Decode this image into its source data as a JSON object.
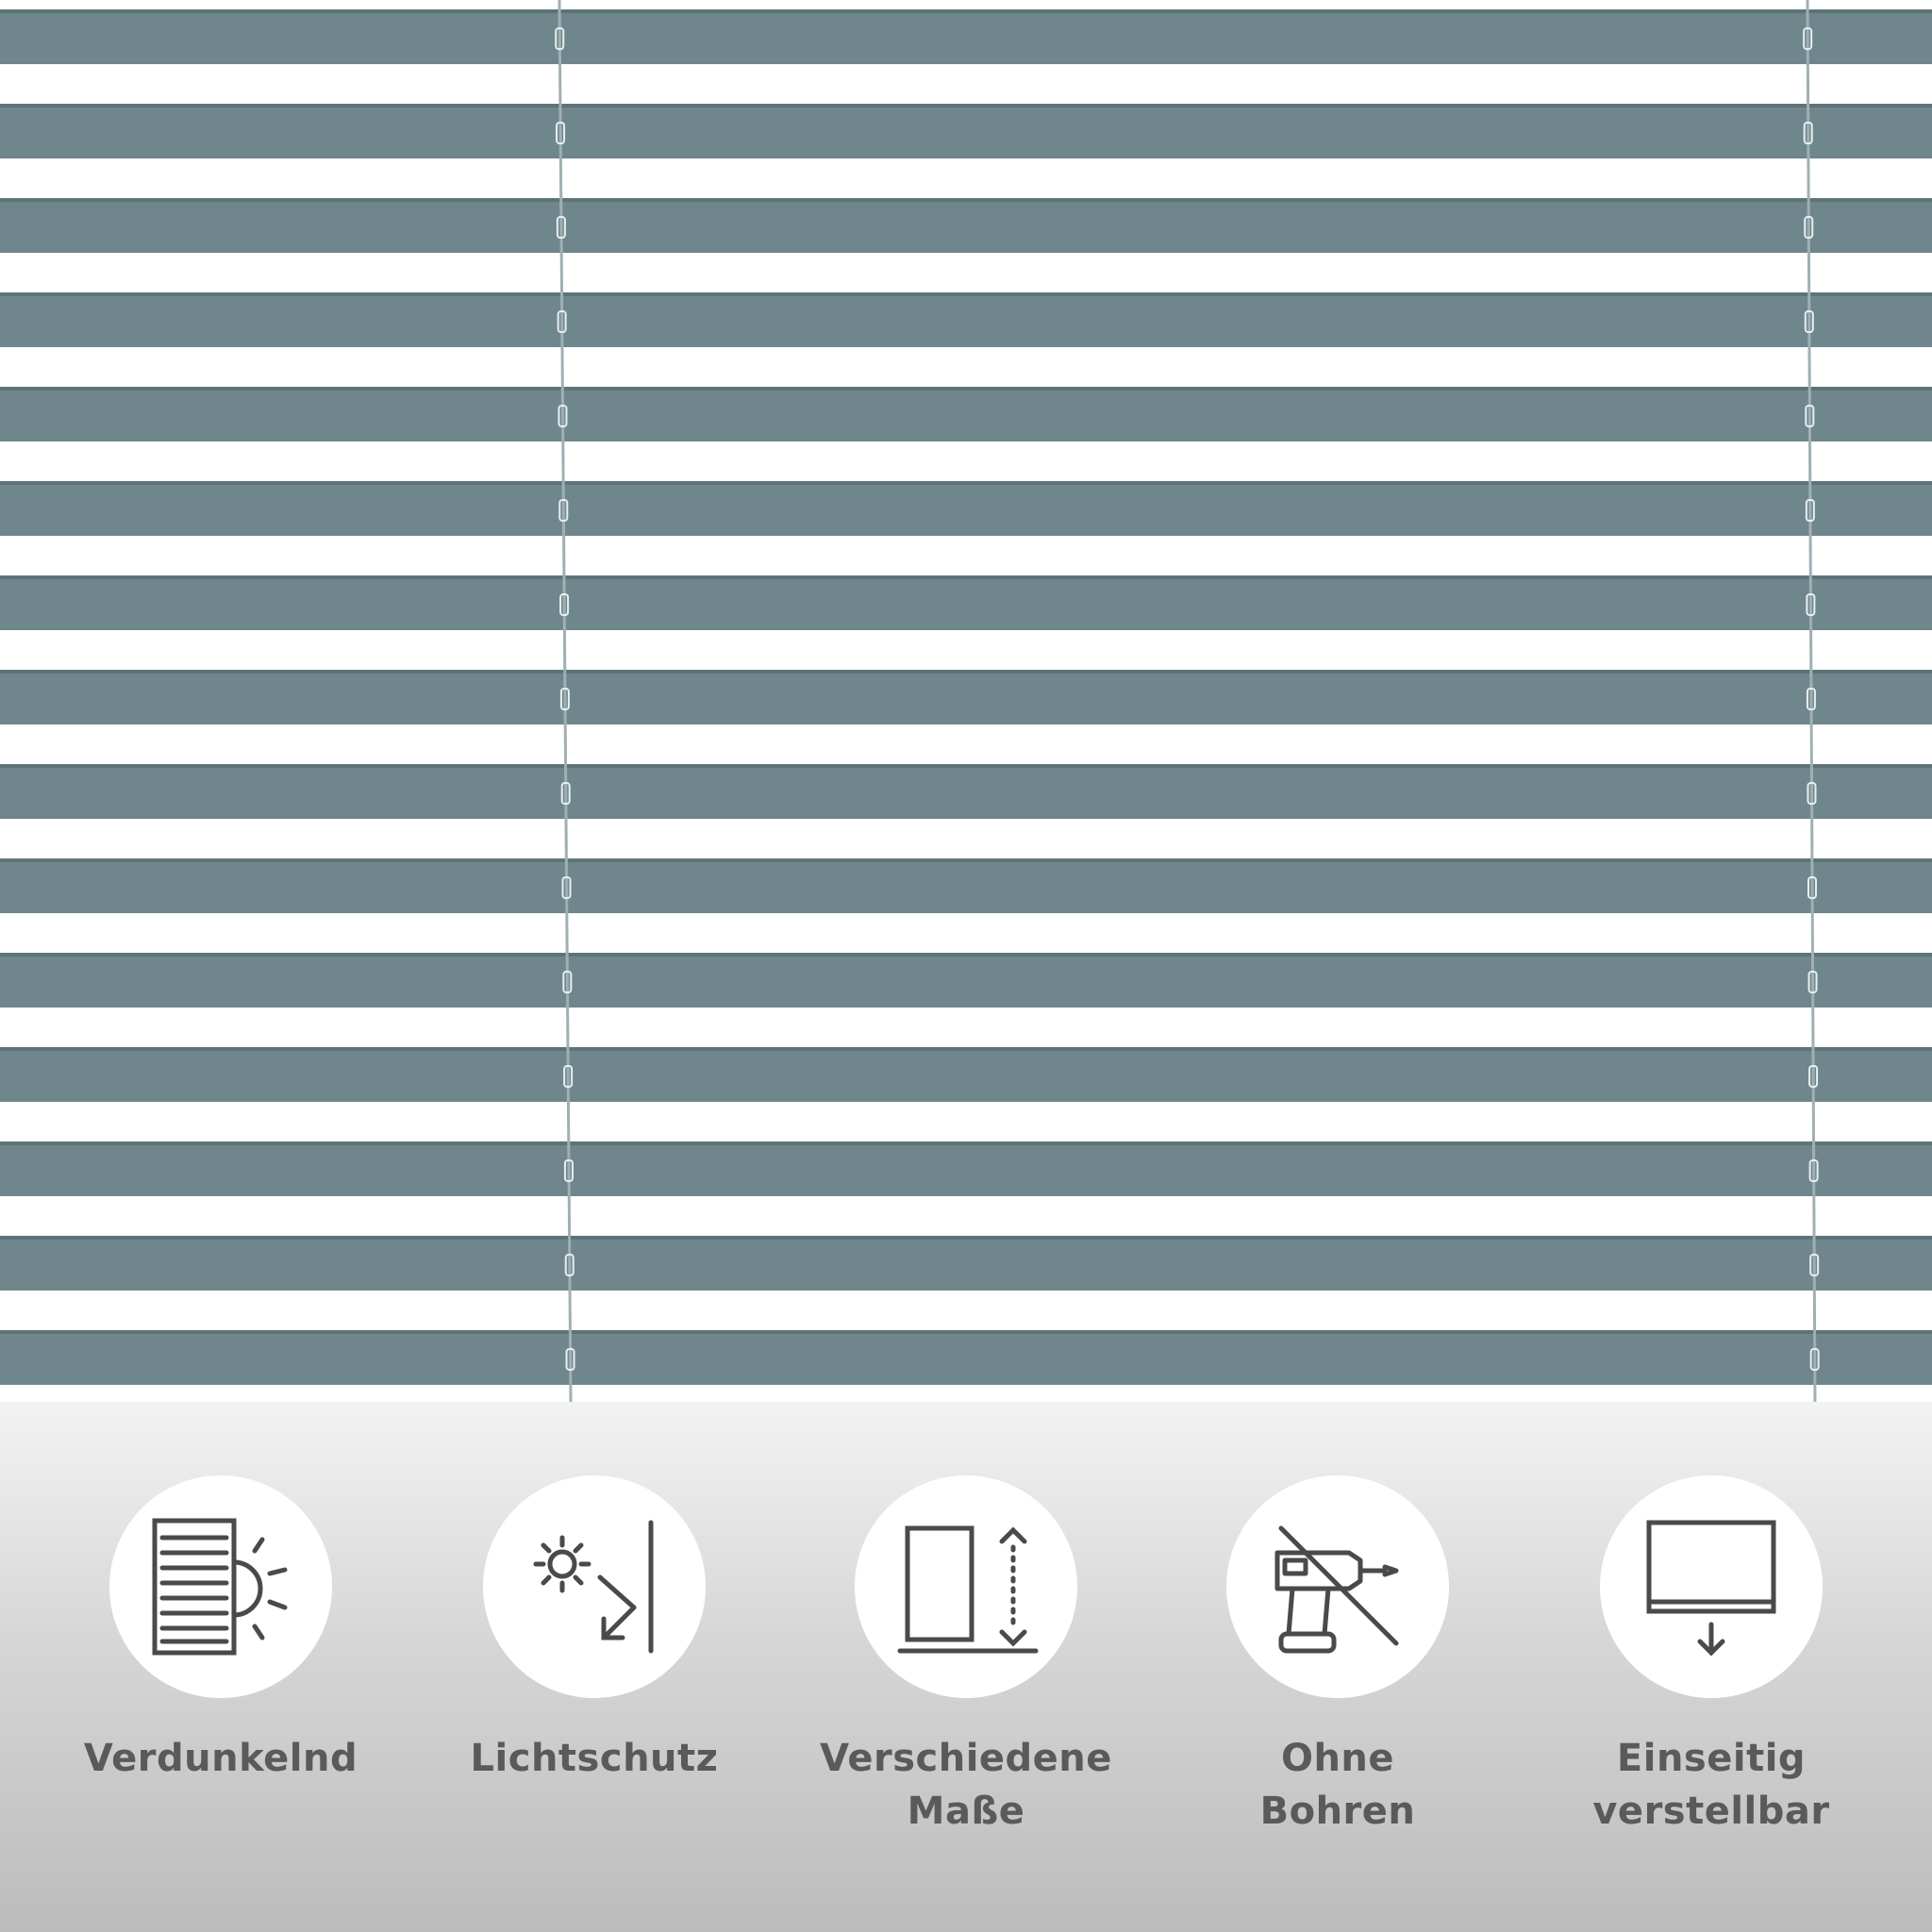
{
  "photo": {
    "slat_color": "#6f878c",
    "background_color": "#ffffff"
  },
  "features": [
    {
      "icon": "blackout-blind-sun-icon",
      "lines": [
        "Verdunkelnd"
      ]
    },
    {
      "icon": "sun-protection-icon",
      "lines": [
        "Lichtschutz"
      ]
    },
    {
      "icon": "various-sizes-icon",
      "lines": [
        "Verschiedene",
        "Maße"
      ]
    },
    {
      "icon": "no-drilling-icon",
      "lines": [
        "Ohne",
        "Bohren"
      ]
    },
    {
      "icon": "one-side-adjustable-icon",
      "lines": [
        "Einseitig",
        "verstellbar"
      ]
    }
  ],
  "colors": {
    "icon_stroke": "#4a4a4a",
    "label_text": "#5a5a5a"
  }
}
